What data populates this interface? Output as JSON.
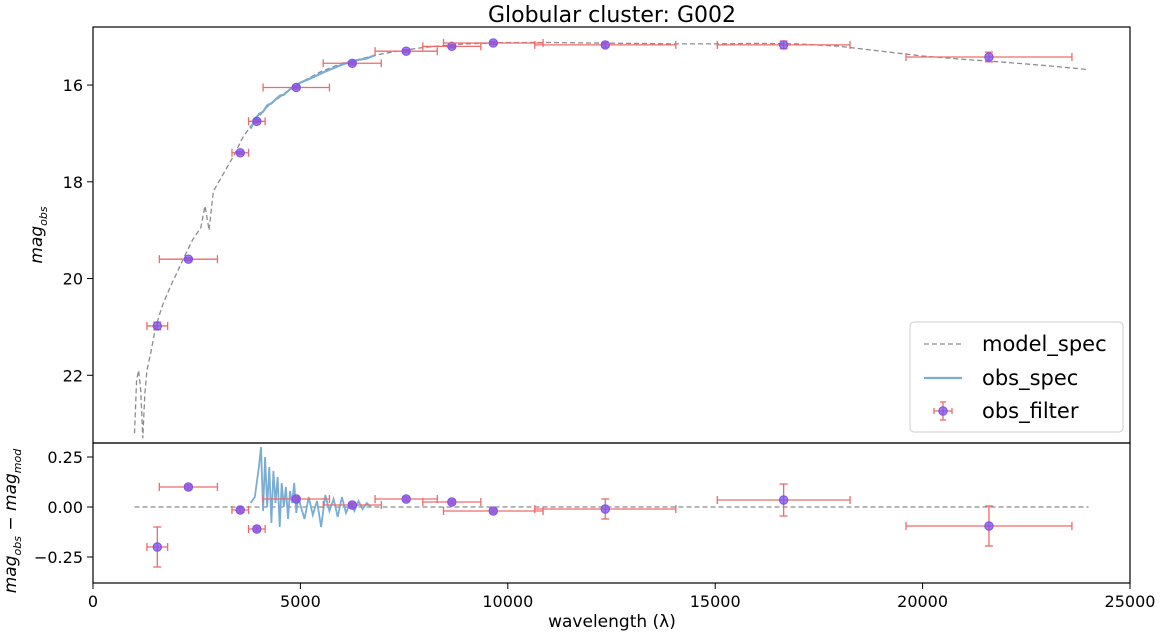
{
  "title": "Globular cluster: G002",
  "chart_data": {
    "type": "scatter",
    "title": "Globular cluster: G002",
    "xlabel": "wavelength (λ)",
    "xlim": [
      0,
      25000
    ],
    "x_ticks": [
      0,
      5000,
      10000,
      15000,
      20000,
      25000
    ],
    "x_tick_labels": [
      "0",
      "5000",
      "10000",
      "15000",
      "20000",
      "25000"
    ],
    "legend": {
      "placement": "bottom-right of top panel",
      "entries": [
        "model_spec",
        "obs_spec",
        "obs_filter"
      ]
    },
    "colors": {
      "model_spec": "#8c8c8c",
      "obs_spec": "#7aadd4",
      "obs_filter_marker": "#7b4ff0",
      "obs_filter_errorbar": "#ee6a6a"
    },
    "top_panel": {
      "ylabel": {
        "main": "mag",
        "sub": "obs"
      },
      "ylim": [
        23.4,
        14.8
      ],
      "inverted": true,
      "y_ticks": [
        16,
        18,
        20,
        22
      ],
      "y_tick_labels": [
        "16",
        "18",
        "20",
        "22"
      ],
      "obs_filter": [
        {
          "x": 1550,
          "y": 20.98,
          "xerr": 250,
          "yerr": 0.08
        },
        {
          "x": 2300,
          "y": 19.6,
          "xerr": 700,
          "yerr": 0.03
        },
        {
          "x": 3550,
          "y": 17.4,
          "xerr": 200,
          "yerr": 0.03
        },
        {
          "x": 3950,
          "y": 16.75,
          "xerr": 200,
          "yerr": 0.03
        },
        {
          "x": 4900,
          "y": 16.05,
          "xerr": 800,
          "yerr": 0.03
        },
        {
          "x": 6250,
          "y": 15.55,
          "xerr": 700,
          "yerr": 0.03
        },
        {
          "x": 7550,
          "y": 15.3,
          "xerr": 750,
          "yerr": 0.03
        },
        {
          "x": 8650,
          "y": 15.2,
          "xerr": 700,
          "yerr": 0.03
        },
        {
          "x": 9650,
          "y": 15.13,
          "xerr": 1200,
          "yerr": 0.03
        },
        {
          "x": 12350,
          "y": 15.17,
          "xerr": 1700,
          "yerr": 0.05
        },
        {
          "x": 16650,
          "y": 15.17,
          "xerr": 1600,
          "yerr": 0.08
        },
        {
          "x": 21600,
          "y": 15.42,
          "xerr": 2000,
          "yerr": 0.1
        }
      ],
      "model_spec": {
        "x": [
          1000,
          1050,
          1100,
          1150,
          1200,
          1250,
          1300,
          1400,
          1500,
          1600,
          1700,
          1800,
          1900,
          2000,
          2200,
          2400,
          2600,
          2700,
          2800,
          2900,
          3000,
          3200,
          3400,
          3600,
          3800,
          4000,
          4200,
          4500,
          5000,
          5500,
          6000,
          6500,
          7000,
          7500,
          8000,
          8500,
          9000,
          10000,
          11000,
          12000,
          13000,
          14000,
          15000,
          16000,
          17000,
          18000,
          19000,
          20000,
          21000,
          22000,
          23000,
          24000
        ],
        "y": [
          23.2,
          22.1,
          21.9,
          22.3,
          23.3,
          22.4,
          21.9,
          21.5,
          21.05,
          20.75,
          20.5,
          20.3,
          20.1,
          19.92,
          19.55,
          19.2,
          18.95,
          18.5,
          19.0,
          18.2,
          18.05,
          17.75,
          17.45,
          17.1,
          16.85,
          16.65,
          16.45,
          16.25,
          15.95,
          15.72,
          15.55,
          15.45,
          15.35,
          15.28,
          15.22,
          15.18,
          15.15,
          15.12,
          15.12,
          15.13,
          15.14,
          15.15,
          15.15,
          15.14,
          15.15,
          15.2,
          15.3,
          15.4,
          15.47,
          15.53,
          15.6,
          15.68
        ]
      },
      "obs_spec": {
        "x": [
          3800,
          3900,
          4000,
          4100,
          4200,
          4300,
          4400,
          4500,
          4600,
          4700,
          4800,
          4900,
          5000,
          5200,
          5400,
          5600,
          5800,
          6000,
          6200,
          6400,
          6600,
          6800
        ],
        "y": [
          16.9,
          16.72,
          16.6,
          16.55,
          16.42,
          16.38,
          16.3,
          16.22,
          16.2,
          16.12,
          16.05,
          16.02,
          15.95,
          15.88,
          15.8,
          15.72,
          15.65,
          15.58,
          15.52,
          15.48,
          15.45,
          15.38
        ]
      }
    },
    "bottom_panel": {
      "ylabel": {
        "a": "mag",
        "a_sub": "obs",
        "minus": " − ",
        "b": "mag",
        "b_sub": "mod"
      },
      "ylim": [
        -0.38,
        0.32
      ],
      "inverted": true,
      "y_ticks": [
        -0.25,
        0.0,
        0.25
      ],
      "y_tick_labels": [
        "−0.25",
        "0.00",
        "0.25"
      ],
      "zero_line_range": [
        1000,
        24000
      ],
      "obs_filter": [
        {
          "x": 1550,
          "y": -0.2,
          "xerr": 250,
          "yerr": 0.1
        },
        {
          "x": 2300,
          "y": 0.1,
          "xerr": 700,
          "yerr": 0.01
        },
        {
          "x": 3550,
          "y": -0.015,
          "xerr": 200,
          "yerr": 0.01
        },
        {
          "x": 3950,
          "y": -0.11,
          "xerr": 200,
          "yerr": 0.01
        },
        {
          "x": 4900,
          "y": 0.04,
          "xerr": 800,
          "yerr": 0.01
        },
        {
          "x": 6250,
          "y": 0.01,
          "xerr": 700,
          "yerr": 0.01
        },
        {
          "x": 7550,
          "y": 0.04,
          "xerr": 750,
          "yerr": 0.01
        },
        {
          "x": 8650,
          "y": 0.025,
          "xerr": 700,
          "yerr": 0.01
        },
        {
          "x": 9650,
          "y": -0.02,
          "xerr": 1200,
          "yerr": 0.01
        },
        {
          "x": 12350,
          "y": -0.01,
          "xerr": 1700,
          "yerr": 0.05
        },
        {
          "x": 16650,
          "y": 0.035,
          "xerr": 1600,
          "yerr": 0.08
        },
        {
          "x": 21600,
          "y": -0.095,
          "xerr": 2000,
          "yerr": 0.1
        }
      ],
      "obs_spec_residual": {
        "x": [
          3800,
          3900,
          4000,
          4050,
          4100,
          4150,
          4200,
          4250,
          4300,
          4350,
          4400,
          4450,
          4500,
          4550,
          4600,
          4650,
          4700,
          4750,
          4800,
          4850,
          4900,
          4950,
          5000,
          5100,
          5200,
          5300,
          5400,
          5500,
          5600,
          5700,
          5800,
          5900,
          6000,
          6100,
          6200,
          6300,
          6400,
          6500,
          6600,
          6700
        ],
        "y": [
          0.02,
          0.05,
          0.2,
          0.3,
          -0.02,
          0.25,
          0.0,
          0.2,
          -0.08,
          0.18,
          0.02,
          0.15,
          -0.1,
          0.12,
          0.0,
          0.1,
          -0.06,
          0.08,
          0.02,
          0.12,
          -0.03,
          0.06,
          0.01,
          -0.06,
          0.05,
          -0.04,
          0.03,
          -0.1,
          0.06,
          -0.02,
          0.04,
          -0.05,
          0.05,
          -0.03,
          0.02,
          -0.02,
          0.03,
          -0.01,
          0.02,
          0.0
        ]
      }
    }
  }
}
